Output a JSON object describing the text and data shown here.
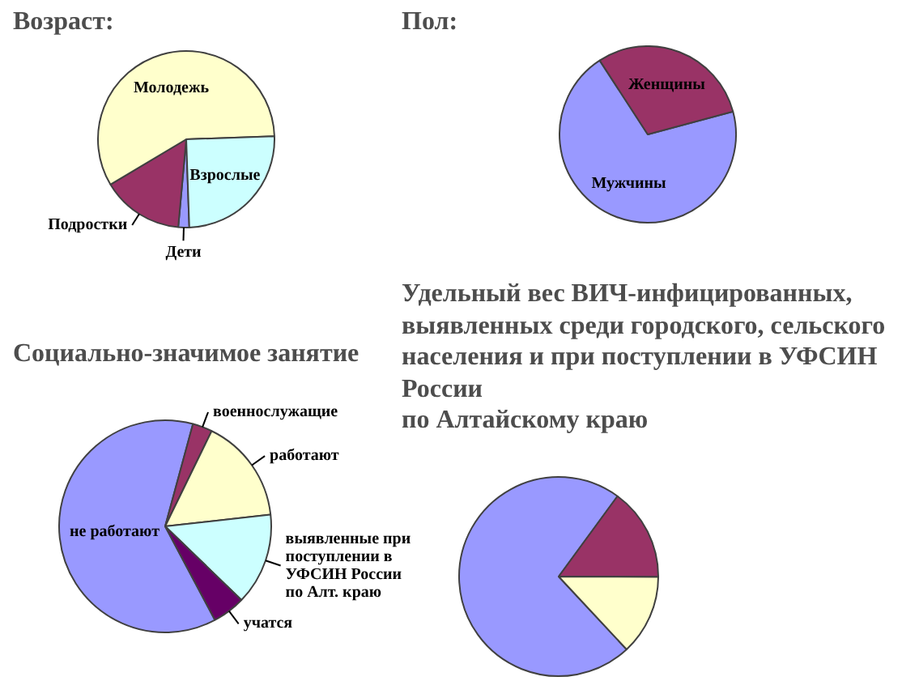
{
  "chart_data": [
    {
      "type": "pie",
      "title": "Возраст:",
      "categories": [
        "Дети",
        "Подростки",
        "Молодежь",
        "Взрослые"
      ],
      "values": [
        2,
        15,
        58,
        25
      ],
      "colors": [
        "#9999ff",
        "#993366",
        "#ffffcc",
        "#ccffff"
      ]
    },
    {
      "type": "pie",
      "title": "Пол:",
      "categories": [
        "Мужчины",
        "Женщины"
      ],
      "values": [
        70,
        30
      ],
      "colors": [
        "#9999ff",
        "#993366"
      ]
    },
    {
      "type": "pie",
      "title": "Социально-значимое занятие",
      "categories": [
        "не работают",
        "военнослужащие",
        "работают",
        "выявленные при поступлении в УФСИН России по Алт. краю",
        "учатся"
      ],
      "values": [
        62,
        3,
        16,
        14,
        5
      ],
      "colors": [
        "#9999ff",
        "#993366",
        "#ffffcc",
        "#ccffff",
        "#660066"
      ]
    },
    {
      "type": "pie",
      "title": "Удельный вес ВИЧ-инфицированных, выявленных среди городского, сельского населения и при поступлении в УФСИН России\nпо Алтайскому краю",
      "categories": [
        null,
        null,
        null
      ],
      "values": [
        72,
        15,
        13
      ],
      "colors": [
        "#9999ff",
        "#993366",
        "#ffffcc"
      ]
    }
  ]
}
